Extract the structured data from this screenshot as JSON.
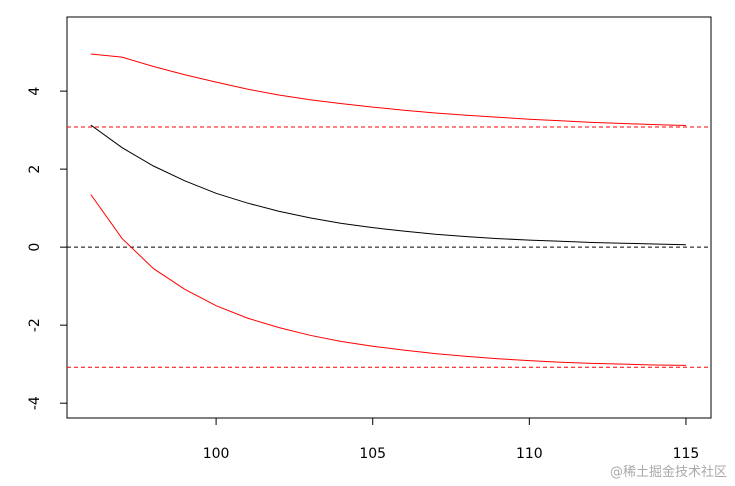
{
  "chart_data": {
    "type": "line",
    "x": [
      96,
      97,
      98,
      99,
      100,
      101,
      102,
      103,
      104,
      105,
      106,
      107,
      108,
      109,
      110,
      111,
      112,
      113,
      114,
      115
    ],
    "series": [
      {
        "color": "#000000",
        "values": [
          3.13,
          2.55,
          2.08,
          1.7,
          1.38,
          1.13,
          0.92,
          0.75,
          0.61,
          0.5,
          0.41,
          0.33,
          0.27,
          0.22,
          0.18,
          0.15,
          0.12,
          0.1,
          0.08,
          0.06
        ]
      },
      {
        "color": "#ff0000",
        "values": [
          4.95,
          4.87,
          4.63,
          4.42,
          4.23,
          4.05,
          3.9,
          3.78,
          3.68,
          3.59,
          3.51,
          3.44,
          3.38,
          3.33,
          3.28,
          3.24,
          3.2,
          3.17,
          3.14,
          3.12
        ]
      },
      {
        "color": "#ff0000",
        "values": [
          1.35,
          0.22,
          -0.55,
          -1.08,
          -1.5,
          -1.82,
          -2.06,
          -2.26,
          -2.42,
          -2.54,
          -2.64,
          -2.73,
          -2.8,
          -2.86,
          -2.91,
          -2.95,
          -2.98,
          -3.0,
          -3.02,
          -3.03
        ]
      }
    ],
    "hlines": [
      {
        "value": 3.08,
        "color": "#ff0000"
      },
      {
        "value": 0,
        "color": "#000000"
      },
      {
        "value": -3.08,
        "color": "#ff0000"
      }
    ],
    "xlim": [
      95.24,
      115.8
    ],
    "ylim": [
      -4.38,
      5.9
    ],
    "xticks": [
      100,
      105,
      110,
      115
    ],
    "yticks": [
      -4,
      -2,
      0,
      2,
      4
    ],
    "watermark": "@稀土掘金技术社区"
  }
}
